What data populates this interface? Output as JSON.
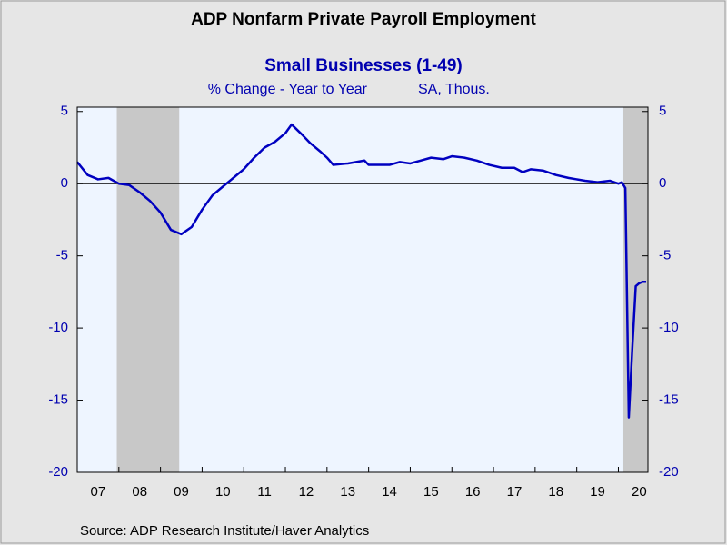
{
  "chart_data": {
    "type": "line",
    "title": "ADP Nonfarm Private Payroll Employment",
    "subtitle": "Small Businesses (1-49)",
    "units_left": "% Change - Year to Year",
    "units_right": "SA, Thous.",
    "source": "Source:  ADP Research Institute/Haver Analytics",
    "x": [
      2007.0,
      2007.25,
      2007.5,
      2007.75,
      2008.0,
      2008.25,
      2008.5,
      2008.75,
      2009.0,
      2009.25,
      2009.5,
      2009.75,
      2010.0,
      2010.25,
      2010.5,
      2010.75,
      2011.0,
      2011.25,
      2011.5,
      2011.75,
      2012.0,
      2012.15,
      2012.4,
      2012.6,
      2012.85,
      2013.0,
      2013.15,
      2013.5,
      2013.9,
      2014.0,
      2014.5,
      2014.75,
      2015.0,
      2015.25,
      2015.5,
      2015.8,
      2016.0,
      2016.3,
      2016.6,
      2016.9,
      2017.2,
      2017.5,
      2017.7,
      2017.9,
      2018.2,
      2018.5,
      2018.8,
      2019.0,
      2019.2,
      2019.5,
      2019.8,
      2020.0,
      2020.083,
      2020.167,
      2020.25,
      2020.333,
      2020.417,
      2020.5,
      2020.583,
      2020.667
    ],
    "series": [
      {
        "name": "Small Businesses (1-49)",
        "color": "#0000c0",
        "values": [
          1.5,
          0.6,
          0.3,
          0.4,
          0.0,
          -0.1,
          -0.6,
          -1.2,
          -2.0,
          -3.2,
          -3.5,
          -3.0,
          -1.8,
          -0.8,
          -0.2,
          0.4,
          1.0,
          1.8,
          2.5,
          2.9,
          3.5,
          4.1,
          3.4,
          2.8,
          2.2,
          1.8,
          1.3,
          1.4,
          1.6,
          1.3,
          1.3,
          1.5,
          1.4,
          1.6,
          1.8,
          1.7,
          1.9,
          1.8,
          1.6,
          1.3,
          1.1,
          1.1,
          0.8,
          1.0,
          0.9,
          0.6,
          0.4,
          0.3,
          0.2,
          0.1,
          0.2,
          0.0,
          0.1,
          -0.3,
          -16.2,
          -11.5,
          -7.1,
          -6.9,
          -6.8,
          -6.8
        ]
      }
    ],
    "recessions": [
      [
        2007.95,
        2009.45
      ],
      [
        2020.12,
        2020.71
      ]
    ],
    "xlim": [
      2007,
      2020.71
    ],
    "xticks": [
      {
        "value": 2007,
        "label": "07"
      },
      {
        "value": 2008,
        "label": "08"
      },
      {
        "value": 2009,
        "label": "09"
      },
      {
        "value": 2010,
        "label": "10"
      },
      {
        "value": 2011,
        "label": "11"
      },
      {
        "value": 2012,
        "label": "12"
      },
      {
        "value": 2013,
        "label": "13"
      },
      {
        "value": 2014,
        "label": "14"
      },
      {
        "value": 2015,
        "label": "15"
      },
      {
        "value": 2016,
        "label": "16"
      },
      {
        "value": 2017,
        "label": "17"
      },
      {
        "value": 2018,
        "label": "18"
      },
      {
        "value": 2019,
        "label": "19"
      },
      {
        "value": 2020,
        "label": "20"
      }
    ],
    "ylim": [
      -20,
      5.3
    ],
    "yticks": [
      5,
      0,
      -5,
      -10,
      -15,
      -20
    ],
    "y2lim": [
      -20,
      5.3
    ],
    "y2ticks": [
      5,
      0,
      -5,
      -10,
      -15,
      -20
    ]
  }
}
